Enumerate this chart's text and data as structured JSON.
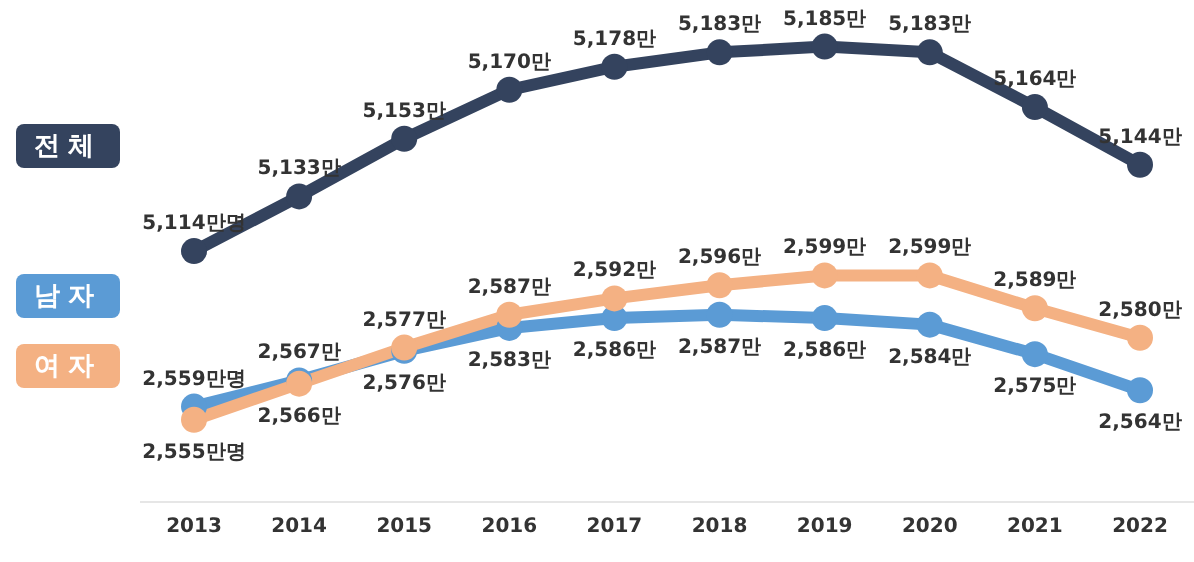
{
  "chart_data": [
    {
      "type": "line",
      "categories": [
        "2013",
        "2014",
        "2015",
        "2016",
        "2017",
        "2018",
        "2019",
        "2020",
        "2021",
        "2022"
      ],
      "series": [
        {
          "name": "전체",
          "color": "#34435e",
          "values": [
            5114,
            5133,
            5153,
            5170,
            5178,
            5183,
            5185,
            5183,
            5164,
            5144
          ],
          "value_labels": [
            "5,114만명",
            "5,133만",
            "5,153만",
            "5,170만",
            "5,178만",
            "5,183만",
            "5,185만",
            "5,183만",
            "5,164만",
            "5,144만"
          ]
        }
      ],
      "marker": "circle",
      "tick_labels": false
    },
    {
      "type": "line",
      "categories": [
        "2013",
        "2014",
        "2015",
        "2016",
        "2017",
        "2018",
        "2019",
        "2020",
        "2021",
        "2022"
      ],
      "series": [
        {
          "name": "남자",
          "color": "#5b9bd5",
          "values": [
            2559,
            2567,
            2576,
            2583,
            2586,
            2587,
            2586,
            2584,
            2575,
            2564
          ],
          "value_labels": [
            "2,559만명",
            "2,567만",
            "2,576만",
            "2,583만",
            "2,586만",
            "2,587만",
            "2,586만",
            "2,584만",
            "2,575만",
            "2,564만"
          ]
        },
        {
          "name": "여자",
          "color": "#f4b183",
          "values": [
            2555,
            2566,
            2577,
            2587,
            2592,
            2596,
            2599,
            2599,
            2589,
            2580
          ],
          "value_labels": [
            "2,555만명",
            "2,566만",
            "2,577만",
            "2,587만",
            "2,592만",
            "2,596만",
            "2,599만",
            "2,599만",
            "2,589만",
            "2,580만"
          ]
        }
      ],
      "marker": "circle",
      "tick_labels": "x"
    }
  ]
}
